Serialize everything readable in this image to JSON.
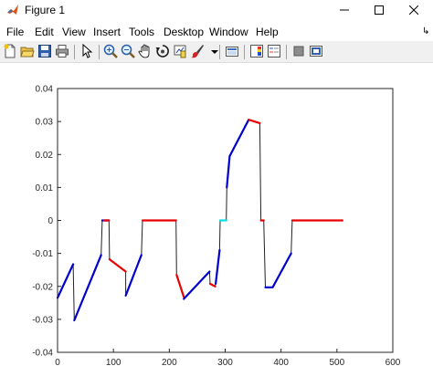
{
  "window": {
    "title": "Figure 1",
    "controls": {
      "minimize": "minimize-icon",
      "maximize": "maximize-icon",
      "close": "close-icon"
    }
  },
  "menu": {
    "items": [
      "File",
      "Edit",
      "View",
      "Insert",
      "Tools",
      "Desktop",
      "Window",
      "Help"
    ],
    "overflow_icon": "chevron-right-icon"
  },
  "toolbar": {
    "buttons": [
      "new-figure-icon",
      "open-file-icon",
      "save-icon",
      "print-icon",
      "edit-plot-icon",
      "zoom-in-icon",
      "zoom-out-icon",
      "pan-icon",
      "rotate-3d-icon",
      "data-cursor-icon",
      "brush-icon",
      "brush-dropdown-icon",
      "link-plot-icon",
      "insert-colorbar-icon",
      "insert-legend-icon",
      "hide-plot-tools-icon",
      "show-plot-tools-icon"
    ]
  },
  "chart_data": {
    "type": "line",
    "title": "",
    "xlabel": "",
    "ylabel": "",
    "xlim": [
      0,
      600
    ],
    "ylim": [
      -0.04,
      0.04
    ],
    "x_ticks": [
      "0",
      "100",
      "200",
      "300",
      "400",
      "500",
      "600"
    ],
    "y_ticks": [
      "-0.04",
      "-0.03",
      "-0.02",
      "-0.01",
      "0",
      "0.01",
      "0.02",
      "0.03",
      "0.04"
    ],
    "grid": false,
    "colors": {
      "blue": "#0000cc",
      "red": "#e80000",
      "cyan": "#00e0e0",
      "dark": "#222222"
    },
    "series": [
      {
        "color": "blue",
        "points": [
          [
            0,
            -0.0235
          ],
          [
            28,
            -0.0133
          ]
        ]
      },
      {
        "color": "blue",
        "points": [
          [
            30,
            -0.0303
          ],
          [
            78,
            -0.0105
          ]
        ]
      },
      {
        "color": "blue",
        "points": [
          [
            80,
            0
          ],
          [
            92,
            0
          ]
        ]
      },
      {
        "color": "red",
        "points": [
          [
            83,
            0
          ],
          [
            92,
            0
          ]
        ]
      },
      {
        "color": "red",
        "points": [
          [
            93,
            -0.0118
          ],
          [
            122,
            -0.0155
          ]
        ]
      },
      {
        "color": "blue",
        "points": [
          [
            122,
            -0.0228
          ],
          [
            150,
            -0.0105
          ]
        ]
      },
      {
        "color": "red",
        "points": [
          [
            152,
            0
          ],
          [
            212,
            0
          ]
        ]
      },
      {
        "color": "red",
        "points": [
          [
            213,
            -0.0165
          ],
          [
            226,
            -0.0232
          ]
        ]
      },
      {
        "color": "blue",
        "points": [
          [
            226,
            -0.0238
          ],
          [
            272,
            -0.0155
          ]
        ]
      },
      {
        "color": "red",
        "points": [
          [
            273,
            -0.0192
          ],
          [
            282,
            -0.02
          ]
        ]
      },
      {
        "color": "blue",
        "points": [
          [
            283,
            -0.0192
          ],
          [
            290,
            -0.009
          ]
        ]
      },
      {
        "color": "cyan",
        "points": [
          [
            291,
            0
          ],
          [
            302,
            0
          ]
        ]
      },
      {
        "color": "blue",
        "points": [
          [
            303,
            0.01
          ],
          [
            308,
            0.0195
          ],
          [
            342,
            0.0305
          ]
        ]
      },
      {
        "color": "red",
        "points": [
          [
            343,
            0.0305
          ],
          [
            362,
            0.0295
          ]
        ]
      },
      {
        "color": "red",
        "points": [
          [
            364,
            0
          ],
          [
            369,
            0
          ]
        ]
      },
      {
        "color": "blue",
        "points": [
          [
            372,
            -0.0203
          ],
          [
            385,
            -0.0203
          ],
          [
            418,
            -0.01
          ]
        ]
      },
      {
        "color": "red",
        "points": [
          [
            420,
            0
          ],
          [
            510,
            0
          ]
        ]
      }
    ],
    "connectors": [
      [
        [
          28,
          -0.0133
        ],
        [
          30,
          -0.0303
        ]
      ],
      [
        [
          78,
          -0.0105
        ],
        [
          80,
          0
        ]
      ],
      [
        [
          92,
          0
        ],
        [
          93,
          -0.0118
        ]
      ],
      [
        [
          122,
          -0.0155
        ],
        [
          122,
          -0.0228
        ]
      ],
      [
        [
          150,
          -0.0105
        ],
        [
          152,
          0
        ]
      ],
      [
        [
          212,
          0
        ],
        [
          213,
          -0.0165
        ]
      ],
      [
        [
          226,
          -0.0232
        ],
        [
          226,
          -0.0238
        ]
      ],
      [
        [
          272,
          -0.0155
        ],
        [
          273,
          -0.0192
        ]
      ],
      [
        [
          282,
          -0.02
        ],
        [
          283,
          -0.0192
        ]
      ],
      [
        [
          290,
          -0.009
        ],
        [
          291,
          0
        ]
      ],
      [
        [
          302,
          0
        ],
        [
          303,
          0.01
        ]
      ],
      [
        [
          362,
          0.0295
        ],
        [
          364,
          0
        ]
      ],
      [
        [
          369,
          0
        ],
        [
          372,
          -0.0203
        ]
      ],
      [
        [
          418,
          -0.01
        ],
        [
          420,
          0
        ]
      ]
    ]
  }
}
